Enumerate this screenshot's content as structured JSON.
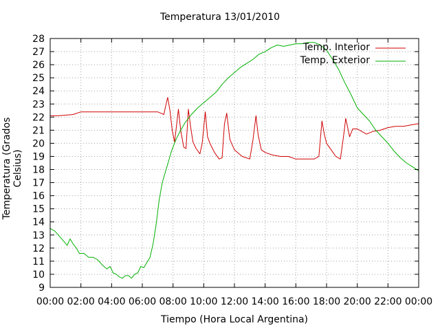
{
  "chart_data": {
    "type": "line",
    "title": "Temperatura 13/01/2010",
    "xlabel": "Tiempo (Hora Local Argentina)",
    "ylabel": "Temperatura (Grados Celsius)",
    "xlim": [
      0,
      24
    ],
    "ylim": [
      9,
      28
    ],
    "x_ticks": [
      "00:00",
      "02:00",
      "04:00",
      "06:00",
      "08:00",
      "10:00",
      "12:00",
      "14:00",
      "16:00",
      "18:00",
      "20:00",
      "22:00",
      "00:00"
    ],
    "y_ticks": [
      "9",
      "10",
      "11",
      "12",
      "13",
      "14",
      "15",
      "16",
      "17",
      "18",
      "19",
      "20",
      "21",
      "22",
      "23",
      "24",
      "25",
      "26",
      "27",
      "28"
    ],
    "grid": true,
    "legend_position": "top-right",
    "colors": {
      "interior": "#d00000",
      "exterior": "#00b000",
      "axis": "#000000",
      "grid": "#a0a0a0"
    },
    "series": [
      {
        "name": "Temp. Interior",
        "x": [
          0,
          0.5,
          1,
          1.5,
          2,
          3,
          4,
          5,
          6,
          6.5,
          7,
          7.2,
          7.4,
          7.55,
          7.65,
          7.8,
          7.95,
          8.1,
          8.25,
          8.35,
          8.5,
          8.7,
          8.85,
          9.0,
          9.15,
          9.3,
          9.5,
          9.75,
          9.9,
          10.1,
          10.25,
          10.4,
          10.7,
          11,
          11.2,
          11.35,
          11.5,
          11.7,
          12,
          12.5,
          13.0,
          13.2,
          13.4,
          13.55,
          13.75,
          14.0,
          14.5,
          15,
          15.5,
          16,
          16.5,
          17.2,
          17.5,
          17.7,
          17.85,
          18.0,
          18.3,
          18.6,
          18.9,
          19.1,
          19.25,
          19.5,
          19.7,
          20.0,
          20.3,
          20.6,
          21,
          21.5,
          22,
          22.5,
          23,
          23.5,
          24
        ],
        "y": [
          22.1,
          22.1,
          22.15,
          22.2,
          22.4,
          22.4,
          22.4,
          22.4,
          22.4,
          22.4,
          22.4,
          22.3,
          22.2,
          23.0,
          23.5,
          22.5,
          21.0,
          20.1,
          21.6,
          22.6,
          21.0,
          19.7,
          19.6,
          22.6,
          21.2,
          20.1,
          19.6,
          19.2,
          20.0,
          22.4,
          20.5,
          20.0,
          19.3,
          18.8,
          18.9,
          21.5,
          22.3,
          20.3,
          19.5,
          19.0,
          18.8,
          20.2,
          22.1,
          20.6,
          19.5,
          19.3,
          19.1,
          19.0,
          19.0,
          18.8,
          18.8,
          18.8,
          19.0,
          21.7,
          20.7,
          20.0,
          19.5,
          19.0,
          18.8,
          20.5,
          21.9,
          20.5,
          21.1,
          21.1,
          20.9,
          20.7,
          20.9,
          21.0,
          21.2,
          21.3,
          21.3,
          21.4,
          21.5
        ]
      },
      {
        "name": "Temp. Exterior",
        "x": [
          0,
          0.3,
          0.6,
          0.9,
          1.1,
          1.3,
          1.5,
          1.7,
          1.9,
          2.2,
          2.5,
          2.8,
          3.1,
          3.4,
          3.7,
          3.9,
          4.1,
          4.3,
          4.5,
          4.7,
          4.9,
          5.1,
          5.3,
          5.5,
          5.7,
          5.9,
          6.1,
          6.3,
          6.5,
          6.7,
          6.9,
          7.1,
          7.3,
          7.5,
          7.7,
          7.9,
          8.2,
          8.5,
          8.8,
          9.2,
          9.6,
          10.0,
          10.4,
          10.8,
          11.2,
          11.6,
          12.0,
          12.4,
          12.8,
          13.2,
          13.6,
          14.0,
          14.4,
          14.8,
          15.2,
          15.6,
          16.0,
          16.4,
          16.8,
          17.2,
          17.6,
          18.0,
          18.4,
          18.8,
          19.2,
          19.6,
          20.0,
          20.4,
          20.8,
          21.2,
          21.6,
          22.0,
          22.4,
          22.8,
          23.2,
          23.6,
          24
        ],
        "y": [
          13.5,
          13.3,
          12.9,
          12.5,
          12.2,
          12.7,
          12.3,
          12.0,
          11.6,
          11.6,
          11.3,
          11.3,
          11.1,
          10.7,
          10.4,
          10.6,
          10.1,
          10.0,
          9.8,
          9.7,
          9.9,
          9.9,
          9.7,
          10.0,
          10.1,
          10.6,
          10.5,
          10.9,
          11.3,
          12.3,
          13.8,
          15.7,
          17.0,
          17.8,
          18.6,
          19.4,
          20.3,
          21.0,
          21.6,
          22.2,
          22.7,
          23.1,
          23.5,
          23.9,
          24.5,
          25.0,
          25.4,
          25.8,
          26.1,
          26.4,
          26.8,
          27.0,
          27.3,
          27.5,
          27.4,
          27.5,
          27.6,
          27.6,
          27.7,
          27.7,
          27.5,
          27.1,
          26.4,
          25.6,
          24.6,
          23.7,
          22.7,
          22.2,
          21.7,
          21.0,
          20.5,
          20.0,
          19.4,
          18.9,
          18.5,
          18.2,
          17.9
        ]
      }
    ]
  }
}
